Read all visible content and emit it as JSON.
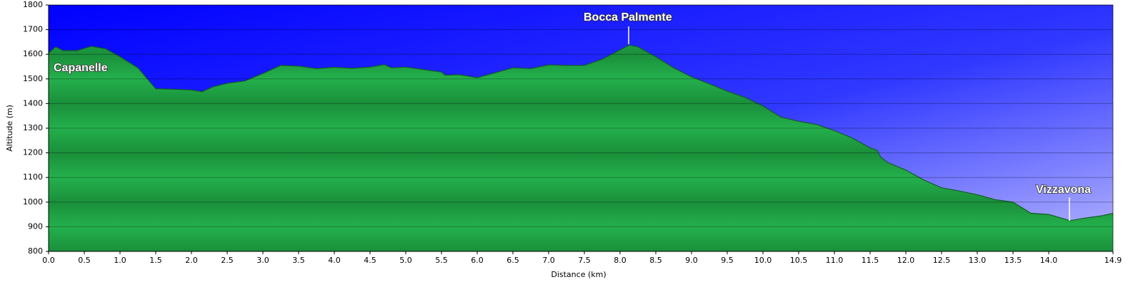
{
  "chart_data": {
    "type": "area",
    "x_label": "Distance   (km)",
    "y_label": "Altitude (m)",
    "annotations": [
      "Capanelle",
      "Bocca Palmente",
      "Vizzavona"
    ],
    "grid": true,
    "xlim": [
      0,
      14.9
    ],
    "ylim": [
      800,
      1800
    ],
    "xticks": [
      {
        "value": 0,
        "label": "0.0"
      },
      0.5,
      {
        "value": 1,
        "label": "1.0"
      },
      1.5,
      {
        "value": 2,
        "label": "2.0"
      },
      2.5,
      {
        "value": 3,
        "label": "3.0"
      },
      3.5,
      {
        "value": 4,
        "label": "4.0"
      },
      4.5,
      {
        "value": 5,
        "label": "5.0"
      },
      5.5,
      {
        "value": 6,
        "label": "6.0"
      },
      6.5,
      {
        "value": 7,
        "label": "7.0"
      },
      7.5,
      {
        "value": 8,
        "label": "8.0"
      },
      8.5,
      {
        "value": 9,
        "label": "9.0"
      },
      9.5,
      {
        "value": 10,
        "label": "10.0"
      },
      10.5,
      {
        "value": 11,
        "label": "11.0"
      },
      11.5,
      {
        "value": 12,
        "label": "12.0"
      },
      12.5,
      {
        "value": 13,
        "label": "13.0"
      },
      13.5,
      {
        "value": 14,
        "label": "14.0"
      },
      14.9
    ],
    "yticks": [
      800,
      900,
      1000,
      1100,
      1200,
      1300,
      1400,
      1500,
      1600,
      1700,
      1800
    ],
    "x": [
      0,
      0.1,
      0.2,
      0.4,
      0.6,
      0.8,
      1.0,
      1.25,
      1.5,
      1.75,
      2.0,
      2.15,
      2.3,
      2.5,
      2.75,
      3.0,
      3.25,
      3.5,
      3.75,
      4.0,
      4.25,
      4.5,
      4.7,
      4.8,
      5.0,
      5.25,
      5.5,
      5.55,
      5.75,
      6.0,
      6.25,
      6.5,
      6.75,
      7.0,
      7.25,
      7.5,
      7.75,
      8.0,
      8.13,
      8.25,
      8.5,
      8.75,
      9.0,
      9.25,
      9.5,
      9.75,
      10.0,
      10.25,
      10.5,
      10.75,
      11.0,
      11.25,
      11.5,
      11.6,
      11.65,
      11.75,
      12.0,
      12.25,
      12.5,
      12.75,
      13.0,
      13.25,
      13.5,
      13.75,
      14.0,
      14.3,
      14.5,
      14.75,
      14.9
    ],
    "series": [
      {
        "name": "Altitude",
        "color": "#22a94a",
        "values": [
          1605,
          1630,
          1615,
          1615,
          1632,
          1622,
          1590,
          1545,
          1460,
          1458,
          1455,
          1448,
          1468,
          1482,
          1492,
          1522,
          1555,
          1552,
          1542,
          1547,
          1543,
          1548,
          1558,
          1545,
          1548,
          1538,
          1528,
          1515,
          1517,
          1505,
          1525,
          1545,
          1542,
          1557,
          1555,
          1555,
          1580,
          1618,
          1637,
          1630,
          1590,
          1545,
          1508,
          1480,
          1450,
          1425,
          1390,
          1345,
          1328,
          1315,
          1290,
          1260,
          1220,
          1210,
          1182,
          1160,
          1130,
          1090,
          1058,
          1045,
          1030,
          1010,
          1000,
          955,
          950,
          925,
          935,
          945,
          955
        ]
      }
    ]
  }
}
